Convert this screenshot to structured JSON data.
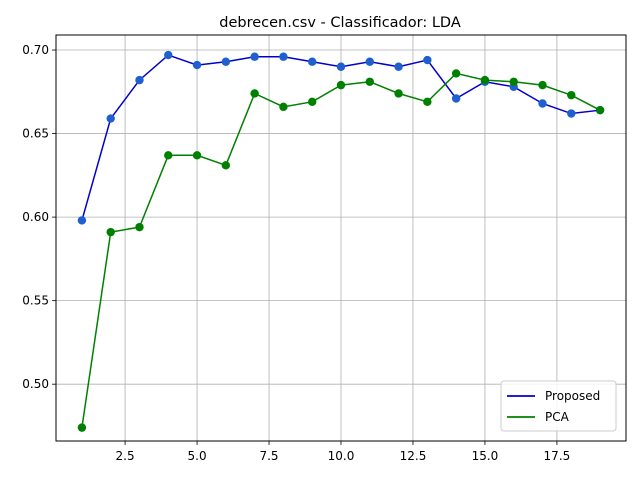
{
  "chart_data": {
    "type": "line",
    "title": "debrecen.csv - Classificador: LDA",
    "xlabel": "",
    "ylabel": "",
    "xlim": [
      0.1,
      19.9
    ],
    "ylim": [
      0.466,
      0.709
    ],
    "xticks": [
      2.5,
      5.0,
      7.5,
      10.0,
      12.5,
      15.0,
      17.5
    ],
    "xtick_labels": [
      "2.5",
      "5.0",
      "7.5",
      "10.0",
      "12.5",
      "15.0",
      "17.5"
    ],
    "yticks": [
      0.5,
      0.55,
      0.6,
      0.65,
      0.7
    ],
    "ytick_labels": [
      "0.50",
      "0.55",
      "0.60",
      "0.65",
      "0.70"
    ],
    "grid": true,
    "legend_position": "lower-right",
    "x": [
      1,
      2,
      3,
      4,
      5,
      6,
      7,
      8,
      9,
      10,
      11,
      12,
      13,
      14,
      15,
      16,
      17,
      18,
      19
    ],
    "series": [
      {
        "name": "Proposed",
        "color": "#0000cc",
        "marker_color": "#1f5fcf",
        "values": [
          0.598,
          0.659,
          0.682,
          0.697,
          0.691,
          0.693,
          0.696,
          0.696,
          0.693,
          0.69,
          0.693,
          0.69,
          0.694,
          0.671,
          0.681,
          0.678,
          0.668,
          0.662,
          0.664
        ]
      },
      {
        "name": "PCA",
        "color": "#008000",
        "marker_color": "#008000",
        "values": [
          0.474,
          0.591,
          0.594,
          0.637,
          0.637,
          0.631,
          0.674,
          0.666,
          0.669,
          0.679,
          0.681,
          0.674,
          0.669,
          0.686,
          0.682,
          0.681,
          0.679,
          0.673,
          0.664
        ]
      }
    ]
  }
}
